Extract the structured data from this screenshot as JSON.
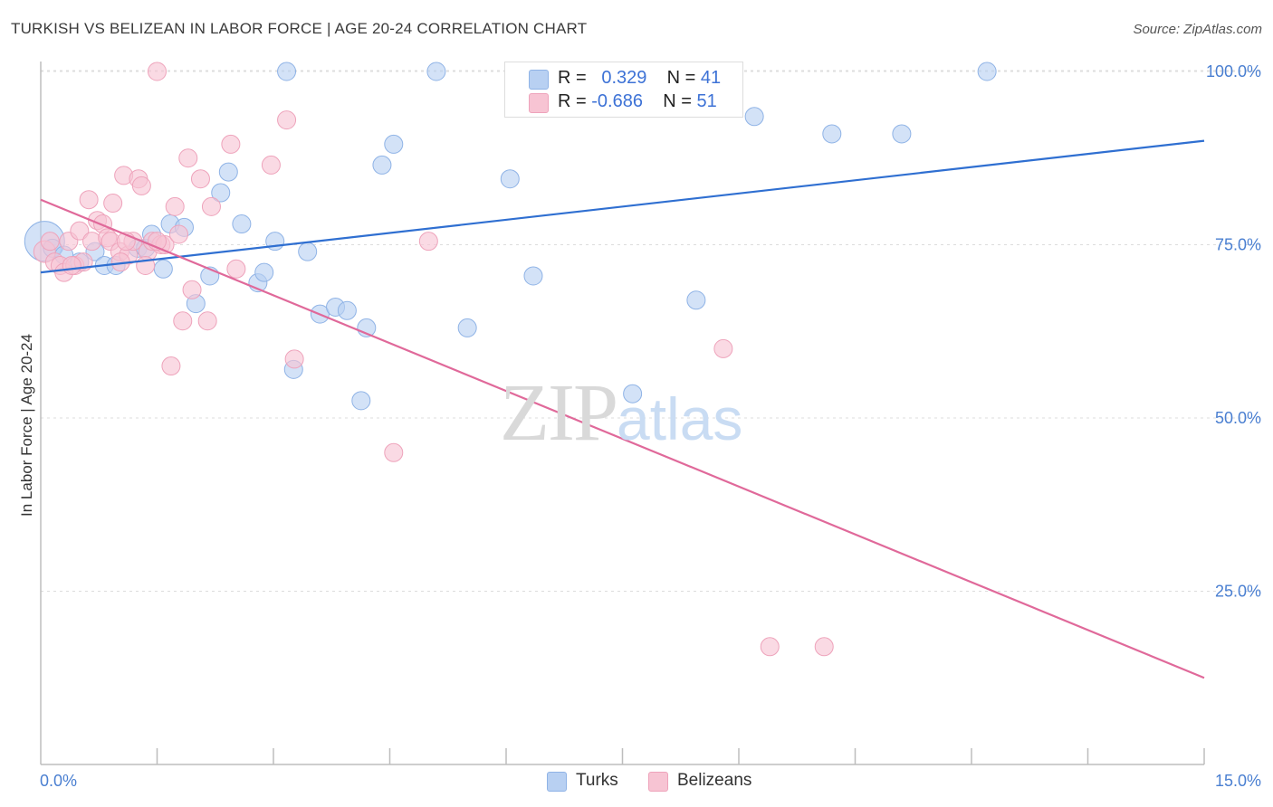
{
  "title": "TURKISH VS BELIZEAN IN LABOR FORCE | AGE 20-24 CORRELATION CHART",
  "source": "Source: ZipAtlas.com",
  "watermark": {
    "zip": "ZIP",
    "atlas": "atlas"
  },
  "legend_top": {
    "rows": [
      {
        "r_label": "R = ",
        "r_value": "0.329",
        "n_label": "N = ",
        "n_value": "41"
      },
      {
        "r_label": "R = ",
        "r_value": "-0.686",
        "n_label": "N = ",
        "n_value": "51"
      }
    ]
  },
  "legend_bottom": [
    "Turks",
    "Belizeans"
  ],
  "colors": {
    "turks_fill": "#b8d0f2",
    "turks_stroke": "#8fb3e6",
    "turks_line": "#2f6fd1",
    "belize_fill": "#f7c4d3",
    "belize_stroke": "#eea3bb",
    "belize_line": "#e0699a",
    "grid": "#dcdcdc",
    "axis": "#bdbdbd",
    "tick_text": "#4a7fd1"
  },
  "chart_data": {
    "type": "scatter",
    "title": "TURKISH VS BELIZEAN IN LABOR FORCE | AGE 20-24 CORRELATION CHART",
    "xlabel": "",
    "ylabel": "In Labor Force | Age 20-24",
    "xlim": [
      0,
      15
    ],
    "ylim": [
      0,
      105
    ],
    "x_tick_labels": [
      "0.0%",
      "15.0%"
    ],
    "y_ticks": [
      25,
      50,
      75,
      100
    ],
    "y_tick_labels": [
      "25.0%",
      "50.0%",
      "75.0%",
      "100.0%"
    ],
    "grid": "horizontal dashed",
    "series": [
      {
        "name": "Turks",
        "R": 0.329,
        "N": 41,
        "trend": [
          [
            0,
            71.0
          ],
          [
            15,
            90.0
          ]
        ],
        "points": [
          [
            0.05,
            75.5,
            22
          ],
          [
            0.15,
            74.5,
            10
          ],
          [
            0.3,
            73.5,
            10
          ],
          [
            0.5,
            72.5,
            10
          ],
          [
            0.7,
            74.0,
            10
          ],
          [
            0.82,
            72.0,
            10
          ],
          [
            0.97,
            72.0,
            10
          ],
          [
            1.25,
            74.5,
            10
          ],
          [
            1.35,
            74.5,
            10
          ],
          [
            1.43,
            76.5,
            10
          ],
          [
            1.58,
            71.5,
            10
          ],
          [
            1.67,
            78.0,
            10
          ],
          [
            1.85,
            77.5,
            10
          ],
          [
            2.0,
            66.5,
            10
          ],
          [
            2.18,
            70.5,
            10
          ],
          [
            2.32,
            82.5,
            10
          ],
          [
            2.42,
            85.5,
            10
          ],
          [
            2.59,
            78.0,
            10
          ],
          [
            2.8,
            69.5,
            10
          ],
          [
            2.88,
            71.0,
            10
          ],
          [
            3.02,
            75.5,
            10
          ],
          [
            3.17,
            100.0,
            10
          ],
          [
            3.26,
            57.0,
            10
          ],
          [
            3.44,
            74.0,
            10
          ],
          [
            3.6,
            65.0,
            10
          ],
          [
            3.8,
            66.0,
            10
          ],
          [
            3.95,
            65.5,
            10
          ],
          [
            4.13,
            52.5,
            10
          ],
          [
            4.2,
            63.0,
            10
          ],
          [
            4.4,
            86.5,
            10
          ],
          [
            4.55,
            89.5,
            10
          ],
          [
            5.1,
            100.0,
            10
          ],
          [
            5.5,
            63.0,
            10
          ],
          [
            6.05,
            84.5,
            10
          ],
          [
            6.35,
            70.5,
            10
          ],
          [
            7.63,
            53.5,
            10
          ],
          [
            8.45,
            67.0,
            10
          ],
          [
            9.2,
            93.5,
            10
          ],
          [
            10.2,
            91.0,
            10
          ],
          [
            11.1,
            91.0,
            10
          ],
          [
            12.2,
            100.0,
            10
          ]
        ]
      },
      {
        "name": "Belizeans",
        "R": -0.686,
        "N": 51,
        "trend": [
          [
            0,
            81.5
          ],
          [
            15,
            12.5
          ]
        ],
        "points": [
          [
            0.05,
            74.0,
            12
          ],
          [
            0.12,
            75.5,
            10
          ],
          [
            0.18,
            72.5,
            10
          ],
          [
            0.25,
            72.0,
            10
          ],
          [
            0.3,
            71.0,
            10
          ],
          [
            0.36,
            75.5,
            10
          ],
          [
            0.44,
            72.0,
            10
          ],
          [
            0.5,
            77.0,
            10
          ],
          [
            0.55,
            72.5,
            10
          ],
          [
            0.62,
            81.5,
            10
          ],
          [
            0.66,
            75.5,
            10
          ],
          [
            0.73,
            78.5,
            10
          ],
          [
            0.8,
            78.0,
            10
          ],
          [
            0.86,
            76.0,
            10
          ],
          [
            0.9,
            75.5,
            10
          ],
          [
            0.93,
            81.0,
            10
          ],
          [
            1.02,
            74.0,
            10
          ],
          [
            1.07,
            85.0,
            10
          ],
          [
            1.13,
            73.5,
            10
          ],
          [
            1.19,
            75.5,
            10
          ],
          [
            1.26,
            84.5,
            10
          ],
          [
            1.3,
            83.5,
            10
          ],
          [
            1.38,
            74.0,
            10
          ],
          [
            1.44,
            75.5,
            10
          ],
          [
            1.5,
            100.0,
            10
          ],
          [
            1.55,
            75.0,
            10
          ],
          [
            1.6,
            75.0,
            10
          ],
          [
            1.68,
            57.5,
            10
          ],
          [
            1.73,
            80.5,
            10
          ],
          [
            1.78,
            76.5,
            10
          ],
          [
            1.83,
            64.0,
            10
          ],
          [
            1.9,
            87.5,
            10
          ],
          [
            1.95,
            68.5,
            10
          ],
          [
            2.06,
            84.5,
            10
          ],
          [
            2.15,
            64.0,
            10
          ],
          [
            2.2,
            80.5,
            10
          ],
          [
            2.45,
            89.5,
            10
          ],
          [
            2.52,
            71.5,
            10
          ],
          [
            2.97,
            86.5,
            10
          ],
          [
            3.17,
            93.0,
            10
          ],
          [
            3.27,
            58.5,
            10
          ],
          [
            4.55,
            45.0,
            10
          ],
          [
            5.0,
            75.5,
            10
          ],
          [
            8.8,
            60.0,
            10
          ],
          [
            9.4,
            17.0,
            10
          ],
          [
            10.1,
            17.0,
            10
          ],
          [
            1.35,
            72.0,
            10
          ],
          [
            1.03,
            72.5,
            10
          ],
          [
            0.4,
            72.0,
            10
          ],
          [
            1.1,
            75.5,
            10
          ],
          [
            1.5,
            75.5,
            10
          ]
        ]
      }
    ]
  }
}
